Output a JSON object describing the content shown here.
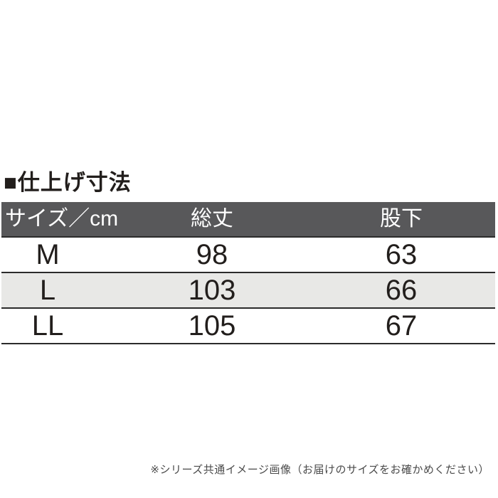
{
  "page": {
    "section_title": "■仕上げ寸法",
    "footnote": "※シリーズ共通イメージ画像（お届けのサイズをお確かめください）"
  },
  "table": {
    "header": {
      "size": "サイズ／cm",
      "total_length": "総丈",
      "inseam": "股下"
    },
    "rows": [
      {
        "size": "M",
        "total_length": "98",
        "inseam": "63"
      },
      {
        "size": "L",
        "total_length": "103",
        "inseam": "66"
      },
      {
        "size": "LL",
        "total_length": "105",
        "inseam": "67"
      }
    ]
  },
  "chart_data": {
    "type": "table",
    "title": "仕上げ寸法",
    "columns": [
      "サイズ／cm",
      "総丈",
      "股下"
    ],
    "units": "cm",
    "rows": [
      [
        "M",
        98,
        63
      ],
      [
        "L",
        103,
        66
      ],
      [
        "LL",
        105,
        67
      ]
    ]
  },
  "colors": {
    "header_bg": "#58585a",
    "header_text": "#ffffff",
    "alt_row_bg": "#e8e8e6",
    "row_border": "#2b2b2b",
    "body_text": "#221e1c",
    "footnote_text": "#4a4a4a"
  }
}
